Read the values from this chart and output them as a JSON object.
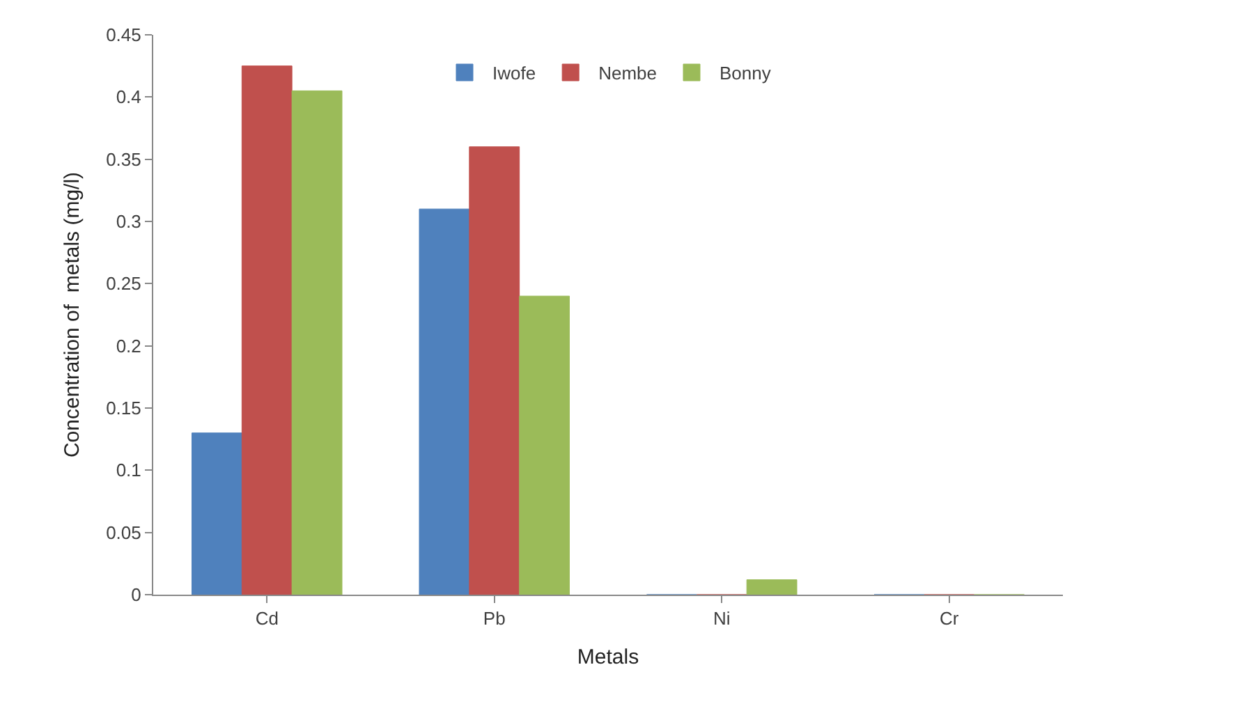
{
  "chart_data": {
    "type": "bar",
    "xlabel": "Metals",
    "ylabel": "Concentration of  metals (mg/l)",
    "categories": [
      "Cd",
      "Pb",
      "Ni",
      "Cr"
    ],
    "series": [
      {
        "name": "Iwofe",
        "color": "#4f81bd",
        "values": [
          0.13,
          0.31,
          0,
          0
        ]
      },
      {
        "name": "Nembe",
        "color": "#c0504d",
        "values": [
          0.425,
          0.36,
          0,
          0
        ]
      },
      {
        "name": "Bonny",
        "color": "#9bbb59",
        "values": [
          0.405,
          0.24,
          0.012,
          0
        ]
      }
    ],
    "ylim": [
      0,
      0.45
    ],
    "yticks": [
      0,
      0.05,
      0.1,
      0.15,
      0.2,
      0.25,
      0.3,
      0.35,
      0.4,
      0.45
    ],
    "legend": "top"
  }
}
